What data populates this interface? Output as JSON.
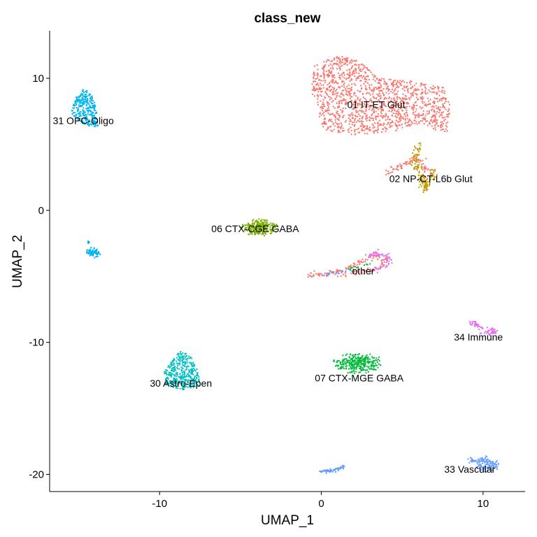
{
  "chart_data": {
    "type": "scatter",
    "title": "class_new",
    "xlabel": "UMAP_1",
    "ylabel": "UMAP_2",
    "xlim": [
      -16.8,
      12.6
    ],
    "ylim": [
      -21.3,
      13.6
    ],
    "xticks": [
      -10,
      0,
      10
    ],
    "yticks": [
      10,
      0,
      -10,
      -20
    ],
    "grid": false,
    "legend": "none",
    "clusters": [
      {
        "label": "01 IT-ET Glut",
        "color": "#F8766D",
        "label_pos": [
          1.6,
          8.0
        ],
        "shape": "blob",
        "center": [
          3.8,
          8.8
        ],
        "spread": [
          3.8,
          2.6
        ],
        "n": 1400,
        "outline": [
          [
            -0.5,
            11.0
          ],
          [
            1.2,
            11.8
          ],
          [
            2.5,
            11.2
          ],
          [
            3.5,
            10.0
          ],
          [
            5.5,
            9.8
          ],
          [
            7.5,
            9.4
          ],
          [
            8.0,
            8.0
          ],
          [
            7.8,
            5.8
          ],
          [
            6.0,
            6.5
          ],
          [
            4.5,
            6.0
          ],
          [
            2.0,
            5.7
          ],
          [
            0.3,
            6.0
          ],
          [
            -0.3,
            7.0
          ],
          [
            -0.6,
            9.0
          ]
        ]
      },
      {
        "label": "01 IT-ET Glut",
        "color": "#F8766D",
        "shape": "line",
        "n": 80,
        "path": [
          [
            4.0,
            2.8
          ],
          [
            5.0,
            3.4
          ],
          [
            6.0,
            4.0
          ],
          [
            6.3,
            3.2
          ],
          [
            6.8,
            2.8
          ]
        ],
        "width": 0.35
      },
      {
        "label": "02 NP-CT-L6b Glut",
        "color": "#C09B00",
        "label_pos": [
          4.2,
          2.4
        ],
        "shape": "line",
        "n": 140,
        "path": [
          [
            6.0,
            5.0
          ],
          [
            5.8,
            3.6
          ],
          [
            6.2,
            2.6
          ],
          [
            6.4,
            1.6
          ],
          [
            6.8,
            2.4
          ],
          [
            7.0,
            3.0
          ]
        ],
        "width": 0.35
      },
      {
        "label": "06 CTX-CGE GABA",
        "color": "#7CAE00",
        "label_pos": [
          -6.8,
          -1.4
        ],
        "shape": "blob",
        "center": [
          -3.8,
          -1.3
        ],
        "spread": [
          1.2,
          0.65
        ],
        "n": 260
      },
      {
        "label": "other",
        "color": "#F8766D",
        "label_pos": [
          1.9,
          -4.6
        ],
        "shape": "line",
        "n": 160,
        "path": [
          [
            -0.8,
            -4.9
          ],
          [
            0.5,
            -4.8
          ],
          [
            1.5,
            -4.4
          ],
          [
            2.5,
            -3.9
          ],
          [
            3.5,
            -3.4
          ],
          [
            4.0,
            -3.8
          ],
          [
            3.6,
            -4.4
          ],
          [
            2.5,
            -4.6
          ],
          [
            1.0,
            -4.9
          ]
        ],
        "width": 0.3
      },
      {
        "label": "other",
        "color": "#E76BF3",
        "shape": "line",
        "n": 60,
        "path": [
          [
            2.8,
            -3.5
          ],
          [
            3.5,
            -3.2
          ],
          [
            4.2,
            -3.6
          ],
          [
            4.0,
            -4.3
          ],
          [
            3.2,
            -4.5
          ]
        ],
        "width": 0.3
      },
      {
        "label": "other",
        "color": "#00BA38",
        "shape": "line",
        "n": 15,
        "path": [
          [
            1.6,
            -4.5
          ],
          [
            2.5,
            -4.2
          ],
          [
            3.2,
            -4.0
          ]
        ],
        "width": 0.2
      },
      {
        "label": "other",
        "color": "#619CFF",
        "shape": "line",
        "n": 15,
        "path": [
          [
            -0.5,
            -4.8
          ],
          [
            0.8,
            -4.7
          ],
          [
            2.0,
            -4.6
          ]
        ],
        "width": 0.2
      },
      {
        "label": "07 CTX-MGE GABA",
        "color": "#00BA38",
        "label_pos": [
          -0.4,
          -12.7
        ],
        "shape": "blob",
        "center": [
          2.3,
          -11.6
        ],
        "spread": [
          1.6,
          0.8
        ],
        "n": 300
      },
      {
        "label": "30 Astro-Epen",
        "color": "#00BFC4",
        "label_pos": [
          -10.6,
          -13.1
        ],
        "shape": "blob",
        "center": [
          -8.5,
          -12.2
        ],
        "spread": [
          1.0,
          1.0
        ],
        "n": 380,
        "outline": [
          [
            -8.6,
            -10.6
          ],
          [
            -8.0,
            -11.2
          ],
          [
            -7.6,
            -12.2
          ],
          [
            -7.5,
            -13.3
          ],
          [
            -8.6,
            -13.6
          ],
          [
            -9.7,
            -13.2
          ],
          [
            -9.7,
            -12.2
          ],
          [
            -9.2,
            -11.2
          ]
        ]
      },
      {
        "label": "31 OPC-Oligo",
        "color": "#00B4EF",
        "label_pos": [
          -16.6,
          6.8
        ],
        "shape": "blob",
        "center": [
          -14.8,
          8.0
        ],
        "spread": [
          0.7,
          1.1
        ],
        "n": 300,
        "outline": [
          [
            -14.7,
            9.3
          ],
          [
            -14.1,
            8.6
          ],
          [
            -13.9,
            7.5
          ],
          [
            -13.8,
            6.3
          ],
          [
            -14.4,
            6.4
          ],
          [
            -15.0,
            6.8
          ],
          [
            -15.5,
            7.4
          ],
          [
            -15.2,
            8.5
          ]
        ]
      },
      {
        "label": "31 OPC-Oligo",
        "color": "#00B4EF",
        "shape": "blob",
        "center": [
          -14.1,
          -3.2
        ],
        "spread": [
          0.5,
          0.4
        ],
        "n": 70
      },
      {
        "label": "31 OPC-Oligo",
        "color": "#00B4EF",
        "shape": "blob",
        "center": [
          -14.4,
          -2.4
        ],
        "spread": [
          0.08,
          0.15
        ],
        "n": 6
      },
      {
        "label": "33 Vascular",
        "color": "#619CFF",
        "label_pos": [
          7.6,
          -19.6
        ],
        "shape": "line",
        "n": 140,
        "path": [
          [
            9.2,
            -18.9
          ],
          [
            10.2,
            -19.0
          ],
          [
            10.8,
            -19.3
          ],
          [
            10.3,
            -19.6
          ],
          [
            9.6,
            -19.4
          ]
        ],
        "width": 0.35
      },
      {
        "label": "33 Vascular",
        "color": "#619CFF",
        "shape": "line",
        "n": 60,
        "path": [
          [
            -0.1,
            -19.8
          ],
          [
            0.8,
            -19.7
          ],
          [
            1.4,
            -19.4
          ]
        ],
        "width": 0.18
      },
      {
        "label": "34 Immune",
        "color": "#E76BF3",
        "label_pos": [
          8.2,
          -9.6
        ],
        "shape": "line",
        "n": 70,
        "path": [
          [
            9.2,
            -8.5
          ],
          [
            10.0,
            -8.9
          ],
          [
            10.8,
            -9.2
          ],
          [
            9.8,
            -9.3
          ]
        ],
        "width": 0.3
      }
    ]
  }
}
